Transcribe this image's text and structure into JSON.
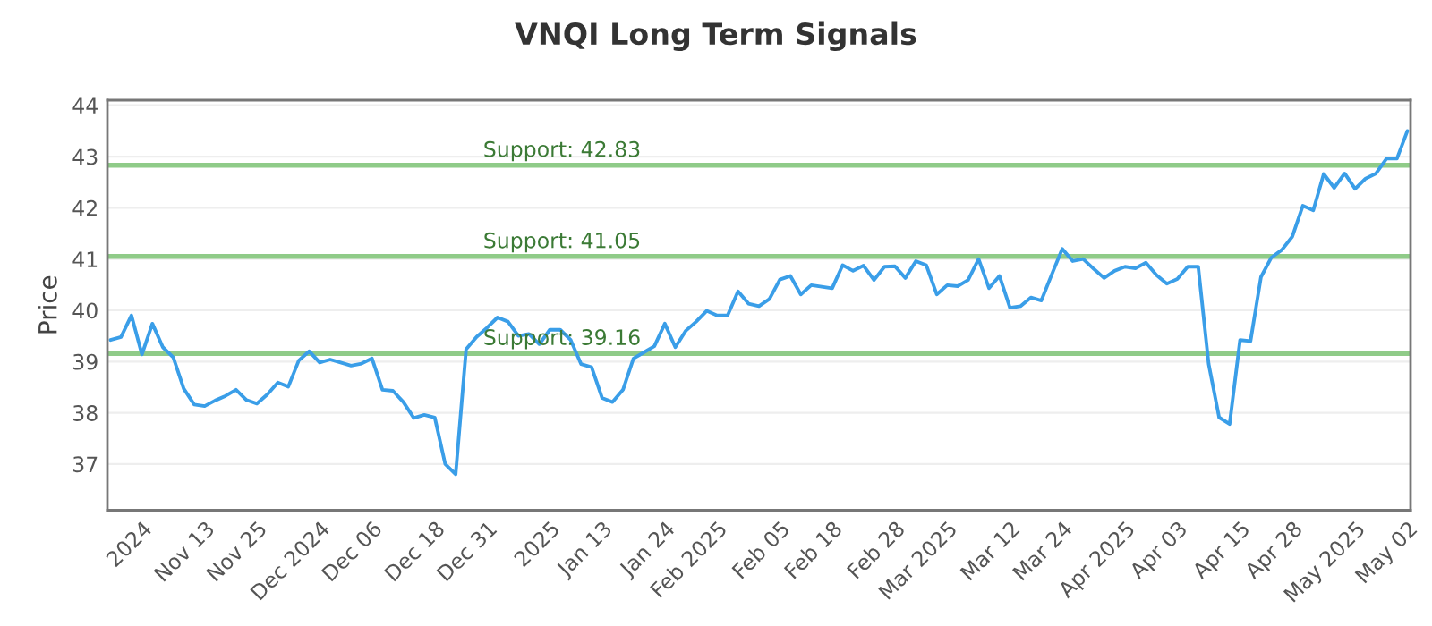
{
  "chart_data": {
    "type": "line",
    "title": "VNQI Long Term Signals",
    "ylabel": "Price",
    "categories": [
      null,
      null,
      null,
      "2024",
      null,
      null,
      null,
      null,
      null,
      "Nov 13",
      null,
      null,
      null,
      null,
      "Nov 25",
      null,
      null,
      null,
      null,
      null,
      "Dec 2024",
      null,
      null,
      null,
      null,
      "Dec 06",
      null,
      null,
      null,
      null,
      null,
      "Dec 18",
      null,
      null,
      null,
      null,
      "Dec 31",
      null,
      null,
      null,
      null,
      null,
      "2025",
      null,
      null,
      null,
      null,
      "Jan 13",
      null,
      null,
      null,
      null,
      null,
      "Jan 24",
      null,
      null,
      null,
      null,
      "Feb 2025",
      null,
      null,
      null,
      null,
      null,
      "Feb 05",
      null,
      null,
      null,
      null,
      "Feb 18",
      null,
      null,
      null,
      null,
      null,
      "Feb 28",
      null,
      null,
      null,
      null,
      "Mar 2025",
      null,
      null,
      null,
      null,
      null,
      "Mar 12",
      null,
      null,
      null,
      null,
      "Mar 24",
      null,
      null,
      null,
      null,
      null,
      "Apr 2025",
      null,
      null,
      null,
      null,
      "Apr 03",
      null,
      null,
      null,
      null,
      null,
      "Apr 15",
      null,
      null,
      null,
      null,
      "Apr 28",
      null,
      null,
      null,
      null,
      null,
      "May 2025",
      null,
      null,
      null,
      null,
      "May 02"
    ],
    "series": [
      {
        "color": "#3a9ee8",
        "values": [
          39.42,
          39.48,
          39.9,
          39.14,
          39.74,
          39.28,
          39.08,
          38.47,
          38.16,
          38.13,
          38.24,
          38.33,
          38.45,
          38.25,
          38.18,
          38.36,
          38.59,
          38.51,
          39.02,
          39.2,
          38.98,
          39.04,
          38.98,
          38.92,
          38.96,
          39.06,
          38.45,
          38.43,
          38.21,
          37.9,
          37.96,
          37.91,
          37.0,
          36.8,
          39.24,
          39.48,
          39.66,
          39.86,
          39.78,
          39.5,
          39.54,
          39.34,
          39.62,
          39.62,
          39.42,
          38.95,
          38.89,
          38.29,
          38.21,
          38.45,
          39.06,
          39.18,
          39.3,
          39.74,
          39.28,
          39.6,
          39.78,
          39.99,
          39.9,
          39.9,
          40.37,
          40.13,
          40.08,
          40.22,
          40.6,
          40.67,
          40.31,
          40.49,
          40.46,
          40.43,
          40.88,
          40.77,
          40.87,
          40.59,
          40.85,
          40.86,
          40.63,
          40.96,
          40.88,
          40.31,
          40.49,
          40.47,
          40.59,
          41.0,
          40.43,
          40.67,
          40.05,
          40.08,
          40.25,
          40.19,
          40.7,
          41.2,
          40.96,
          41.0,
          40.81,
          40.63,
          40.77,
          40.85,
          40.82,
          40.93,
          40.69,
          40.52,
          40.61,
          40.85,
          40.85,
          38.95,
          37.91,
          37.78,
          39.42,
          39.4,
          40.65,
          41.03,
          41.18,
          41.44,
          42.04,
          41.95,
          42.66,
          42.39,
          42.67,
          42.37,
          42.57,
          42.67,
          42.96,
          42.96,
          43.5
        ]
      }
    ],
    "ylim": [
      36.1,
      44.1
    ],
    "yticks": [
      37,
      38,
      39,
      40,
      41,
      42,
      43,
      44
    ],
    "grid": "y",
    "marker": "none",
    "line_style": "solid",
    "legend": false,
    "ref_lines": [
      {
        "axis": "y",
        "value": 42.83,
        "label": "Support: 42.83",
        "color": "#8fcb88"
      },
      {
        "axis": "y",
        "value": 41.05,
        "label": "Support: 41.05",
        "color": "#8fcb88"
      },
      {
        "axis": "y",
        "value": 39.16,
        "label": "Support: 39.16",
        "color": "#8fcb88"
      }
    ]
  }
}
